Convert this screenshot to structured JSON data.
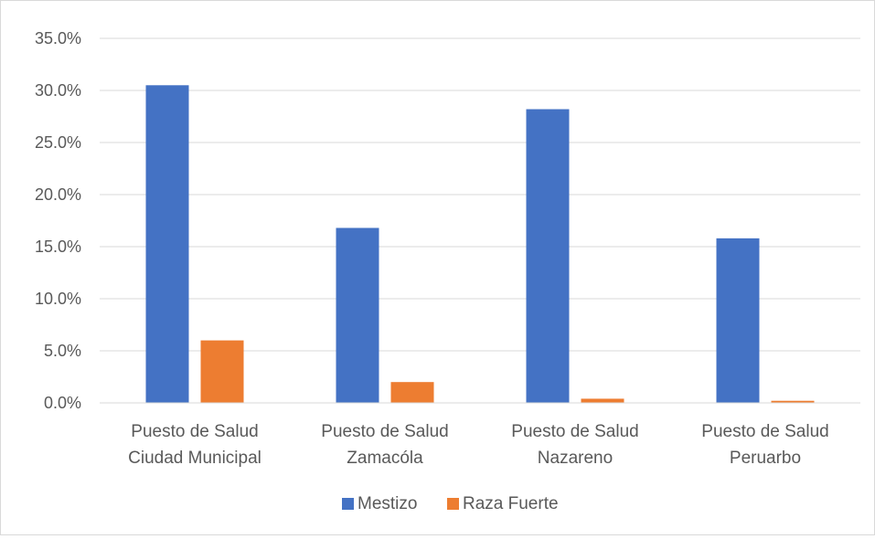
{
  "chart_data": {
    "type": "bar",
    "categories": [
      [
        "Puesto de Salud",
        "Ciudad Municipal"
      ],
      [
        "Puesto de Salud",
        "Zamacóla"
      ],
      [
        "Puesto de Salud",
        "Nazareno"
      ],
      [
        "Puesto de Salud",
        "Peruarbo"
      ]
    ],
    "series": [
      {
        "name": "Mestizo",
        "color": "#4472c4",
        "values": [
          30.5,
          16.8,
          28.2,
          15.8
        ]
      },
      {
        "name": "Raza Fuerte",
        "color": "#ed7d31",
        "values": [
          6.0,
          2.0,
          0.4,
          0.2
        ]
      }
    ],
    "ylim": [
      0,
      35
    ],
    "yticks": [
      "0.0%",
      "5.0%",
      "10.0%",
      "15.0%",
      "20.0%",
      "25.0%",
      "30.0%",
      "35.0%"
    ],
    "ytick_values": [
      0,
      5,
      10,
      15,
      20,
      25,
      30,
      35
    ],
    "grid": true,
    "legend_position": "bottom",
    "title": "",
    "xlabel": "",
    "ylabel": ""
  }
}
